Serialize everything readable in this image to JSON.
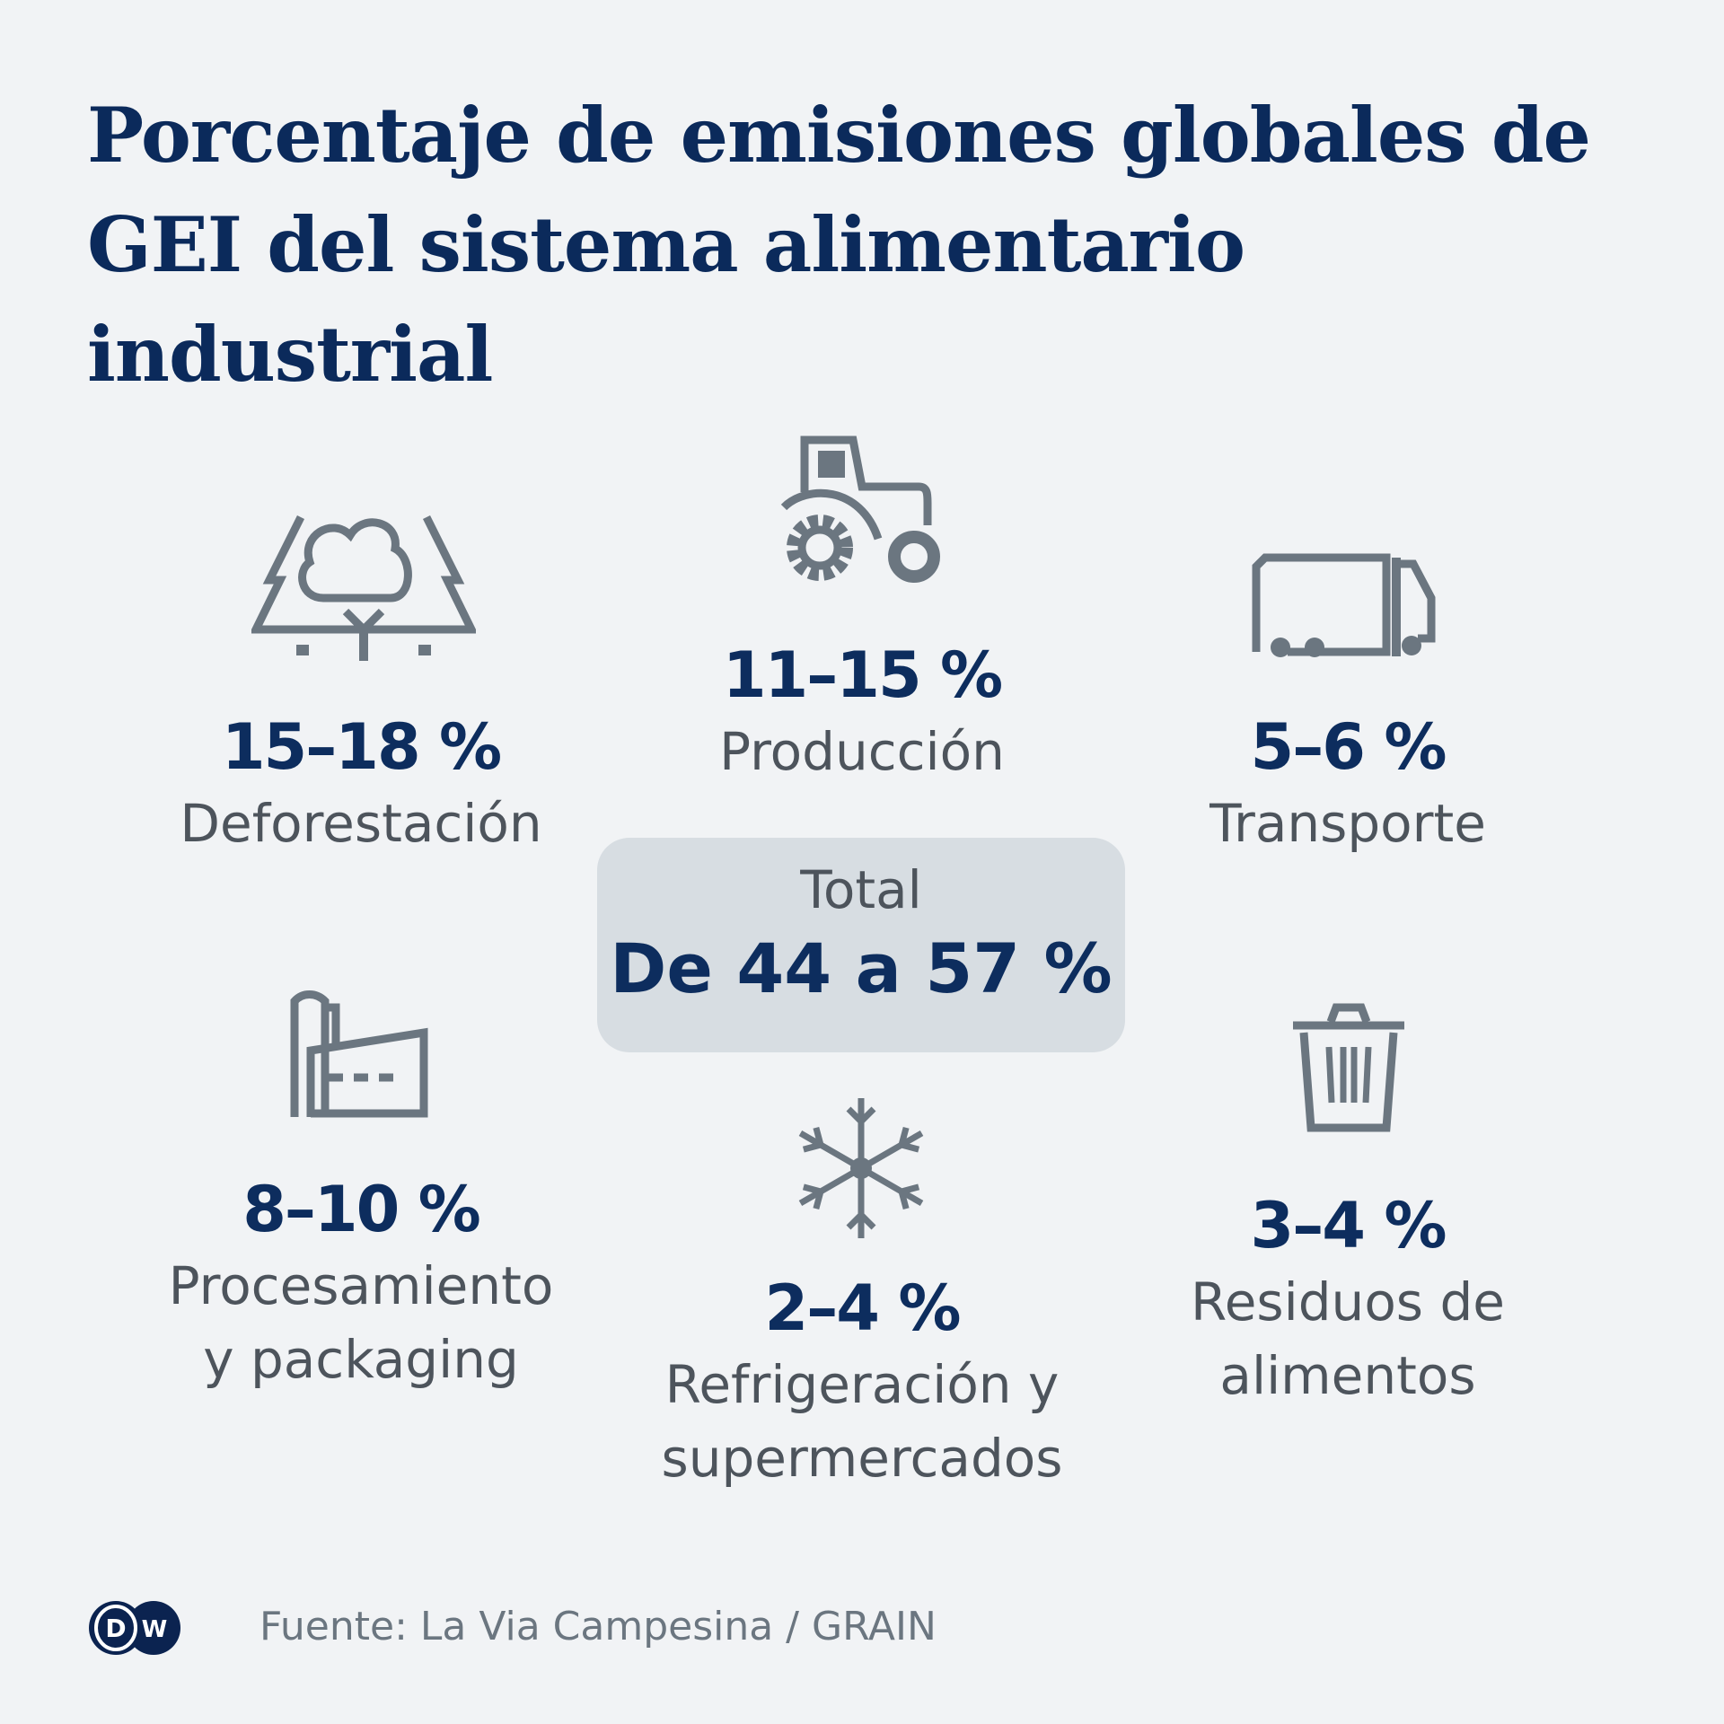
{
  "title": {
    "line1": "Porcentaje de emisiones globales de",
    "line2": "GEI del sistema alimentario industrial"
  },
  "items": [
    {
      "icon": "forest-icon",
      "value": "15–18 %",
      "label": [
        "Deforestación"
      ]
    },
    {
      "icon": "tractor-icon",
      "value": "11–15 %",
      "label": [
        "Producción"
      ]
    },
    {
      "icon": "truck-icon",
      "value": "5–6 %",
      "label": [
        "Transporte"
      ]
    },
    {
      "icon": "factory-icon",
      "value": "8–10 %",
      "label": [
        "Procesamiento",
        "y packaging"
      ]
    },
    {
      "icon": "snowflake-icon",
      "value": "2–4 %",
      "label": [
        "Refrigeración y",
        "supermercados"
      ]
    },
    {
      "icon": "trash-icon",
      "value": "3–4 %",
      "label": [
        "Residuos de",
        "alimentos"
      ]
    }
  ],
  "total": {
    "label": "Total",
    "value": "De 44 a 57 %"
  },
  "footer": {
    "source": "Fuente: La Via Campesina / GRAIN",
    "logo_text": "DW"
  },
  "colors": {
    "background": "#f1f3f5",
    "title": "#0b2a5b",
    "value": "#0d2d5e",
    "label": "#4d545c",
    "icon": "#6b7680",
    "total_box": "#d7dde2"
  }
}
